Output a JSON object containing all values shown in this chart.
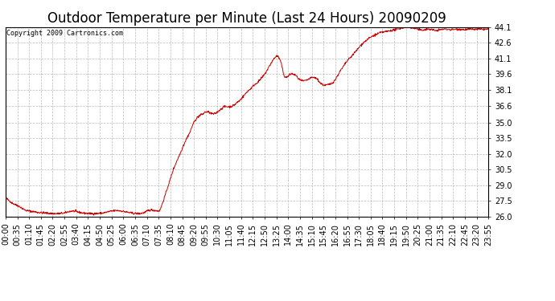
{
  "title": "Outdoor Temperature per Minute (Last 24 Hours) 20090209",
  "copyright_text": "Copyright 2009 Cartronics.com",
  "line_color": "#cc0000",
  "background_color": "#ffffff",
  "grid_color": "#aaaaaa",
  "ylim": [
    26.0,
    44.1
  ],
  "yticks": [
    26.0,
    27.5,
    29.0,
    30.5,
    32.0,
    33.5,
    35.0,
    36.6,
    38.1,
    39.6,
    41.1,
    42.6,
    44.1
  ],
  "title_fontsize": 12,
  "copyright_fontsize": 6,
  "tick_fontsize": 7,
  "xtick_labels": [
    "00:00",
    "00:35",
    "01:10",
    "01:45",
    "02:20",
    "02:55",
    "03:40",
    "04:15",
    "04:50",
    "05:25",
    "06:00",
    "06:35",
    "07:10",
    "07:35",
    "08:10",
    "08:45",
    "09:20",
    "09:55",
    "10:30",
    "11:05",
    "11:40",
    "12:15",
    "12:50",
    "13:25",
    "14:00",
    "14:35",
    "15:10",
    "15:45",
    "16:20",
    "16:55",
    "17:30",
    "18:05",
    "18:40",
    "19:15",
    "19:50",
    "20:25",
    "21:00",
    "21:35",
    "22:10",
    "22:45",
    "23:20",
    "23:55"
  ],
  "num_points": 1440,
  "raw_curve": [
    [
      0,
      27.8
    ],
    [
      20,
      27.3
    ],
    [
      40,
      27.0
    ],
    [
      60,
      26.6
    ],
    [
      80,
      26.5
    ],
    [
      100,
      26.4
    ],
    [
      120,
      26.35
    ],
    [
      140,
      26.3
    ],
    [
      160,
      26.3
    ],
    [
      175,
      26.35
    ],
    [
      190,
      26.5
    ],
    [
      200,
      26.55
    ],
    [
      215,
      26.45
    ],
    [
      230,
      26.35
    ],
    [
      250,
      26.3
    ],
    [
      270,
      26.3
    ],
    [
      290,
      26.35
    ],
    [
      310,
      26.5
    ],
    [
      330,
      26.6
    ],
    [
      345,
      26.55
    ],
    [
      360,
      26.45
    ],
    [
      375,
      26.35
    ],
    [
      390,
      26.3
    ],
    [
      400,
      26.3
    ],
    [
      415,
      26.4
    ],
    [
      425,
      26.6
    ],
    [
      435,
      26.65
    ],
    [
      445,
      26.6
    ],
    [
      455,
      26.55
    ],
    [
      460,
      26.6
    ],
    [
      470,
      27.5
    ],
    [
      480,
      28.5
    ],
    [
      490,
      29.5
    ],
    [
      500,
      30.5
    ],
    [
      510,
      31.3
    ],
    [
      520,
      32.0
    ],
    [
      530,
      32.8
    ],
    [
      540,
      33.5
    ],
    [
      550,
      34.1
    ],
    [
      558,
      34.8
    ],
    [
      565,
      35.2
    ],
    [
      572,
      35.5
    ],
    [
      580,
      35.7
    ],
    [
      588,
      35.8
    ],
    [
      595,
      36.0
    ],
    [
      605,
      36.0
    ],
    [
      612,
      35.85
    ],
    [
      620,
      35.8
    ],
    [
      628,
      35.9
    ],
    [
      635,
      36.1
    ],
    [
      643,
      36.3
    ],
    [
      650,
      36.5
    ],
    [
      660,
      36.5
    ],
    [
      668,
      36.5
    ],
    [
      675,
      36.55
    ],
    [
      683,
      36.7
    ],
    [
      690,
      36.9
    ],
    [
      698,
      37.1
    ],
    [
      706,
      37.4
    ],
    [
      714,
      37.7
    ],
    [
      722,
      38.0
    ],
    [
      730,
      38.2
    ],
    [
      738,
      38.5
    ],
    [
      746,
      38.7
    ],
    [
      754,
      38.9
    ],
    [
      762,
      39.2
    ],
    [
      770,
      39.5
    ],
    [
      778,
      39.9
    ],
    [
      785,
      40.3
    ],
    [
      792,
      40.7
    ],
    [
      798,
      41.0
    ],
    [
      803,
      41.2
    ],
    [
      808,
      41.35
    ],
    [
      812,
      41.3
    ],
    [
      816,
      41.1
    ],
    [
      820,
      40.8
    ],
    [
      824,
      40.3
    ],
    [
      828,
      39.7
    ],
    [
      832,
      39.35
    ],
    [
      838,
      39.3
    ],
    [
      845,
      39.5
    ],
    [
      852,
      39.65
    ],
    [
      858,
      39.6
    ],
    [
      865,
      39.5
    ],
    [
      872,
      39.2
    ],
    [
      880,
      39.0
    ],
    [
      888,
      38.95
    ],
    [
      895,
      39.0
    ],
    [
      902,
      39.1
    ],
    [
      910,
      39.25
    ],
    [
      918,
      39.3
    ],
    [
      924,
      39.25
    ],
    [
      930,
      39.1
    ],
    [
      937,
      38.8
    ],
    [
      945,
      38.6
    ],
    [
      952,
      38.55
    ],
    [
      960,
      38.6
    ],
    [
      967,
      38.65
    ],
    [
      975,
      38.8
    ],
    [
      983,
      39.1
    ],
    [
      990,
      39.5
    ],
    [
      997,
      39.9
    ],
    [
      1004,
      40.2
    ],
    [
      1012,
      40.6
    ],
    [
      1020,
      40.95
    ],
    [
      1028,
      41.2
    ],
    [
      1036,
      41.5
    ],
    [
      1044,
      41.8
    ],
    [
      1052,
      42.1
    ],
    [
      1060,
      42.4
    ],
    [
      1068,
      42.65
    ],
    [
      1076,
      42.85
    ],
    [
      1084,
      43.05
    ],
    [
      1092,
      43.2
    ],
    [
      1100,
      43.35
    ],
    [
      1108,
      43.45
    ],
    [
      1115,
      43.55
    ],
    [
      1122,
      43.6
    ],
    [
      1130,
      43.65
    ],
    [
      1138,
      43.7
    ],
    [
      1146,
      43.75
    ],
    [
      1154,
      43.8
    ],
    [
      1162,
      43.85
    ],
    [
      1170,
      43.9
    ],
    [
      1178,
      44.0
    ],
    [
      1186,
      44.05
    ],
    [
      1193,
      44.1
    ],
    [
      1200,
      44.1
    ],
    [
      1208,
      44.05
    ],
    [
      1216,
      44.0
    ],
    [
      1224,
      43.95
    ],
    [
      1232,
      43.85
    ],
    [
      1240,
      43.8
    ],
    [
      1248,
      43.85
    ],
    [
      1256,
      43.9
    ],
    [
      1264,
      43.9
    ],
    [
      1272,
      43.85
    ],
    [
      1280,
      43.75
    ],
    [
      1288,
      43.8
    ],
    [
      1296,
      43.85
    ],
    [
      1304,
      43.9
    ],
    [
      1312,
      43.9
    ],
    [
      1320,
      43.88
    ],
    [
      1328,
      43.85
    ],
    [
      1336,
      43.88
    ],
    [
      1344,
      43.9
    ],
    [
      1352,
      43.9
    ],
    [
      1360,
      43.88
    ],
    [
      1368,
      43.85
    ],
    [
      1376,
      43.88
    ],
    [
      1384,
      43.9
    ],
    [
      1392,
      43.9
    ],
    [
      1400,
      43.88
    ],
    [
      1408,
      43.9
    ],
    [
      1416,
      43.9
    ],
    [
      1424,
      43.88
    ],
    [
      1432,
      43.9
    ],
    [
      1439,
      43.9
    ]
  ]
}
